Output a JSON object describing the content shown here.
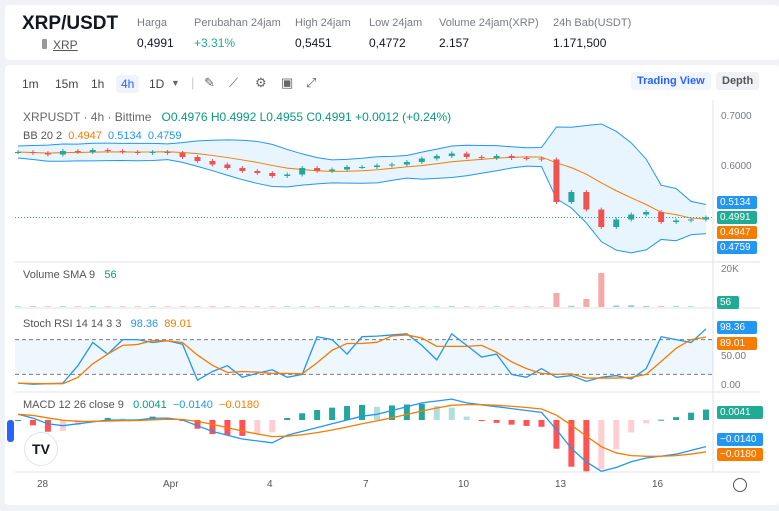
{
  "header": {
    "pair": "XRP/USDT",
    "coin": "XRP",
    "stats": [
      {
        "label": "Harga",
        "value": "0,4991"
      },
      {
        "label": "Perubahan 24jam",
        "value": "+3.31%",
        "color": "#22ab94"
      },
      {
        "label": "High 24jam",
        "value": "0,5451"
      },
      {
        "label": "Low 24jam",
        "value": "0,4772"
      },
      {
        "label": "Volume 24jam(XRP)",
        "value": "2.157"
      },
      {
        "label": "24h Bab(USDT)",
        "value": "1.171,500"
      }
    ]
  },
  "toolbar": {
    "timeframes": [
      "1m",
      "15m",
      "1h",
      "4h",
      "1D"
    ],
    "active": "4h",
    "tools": [
      "pencil-icon",
      "indicator-icon",
      "gear-icon",
      "save-icon",
      "fullscreen-icon"
    ],
    "trading_view": "Trading View",
    "depth": "Depth"
  },
  "legend": {
    "symbol": "XRPUSDT · 4h · Bittime",
    "o": "O0.4976",
    "h": "H0.4992",
    "l": "L0.4955",
    "c": "C0.4991",
    "chg": "+0.0012 (+0.24%)",
    "bb": "BB 20 2",
    "bb_basis": "0.4947",
    "bb_upper": "0.5134",
    "bb_lower": "0.4759",
    "vol": "Volume SMA 9",
    "vol_val": "56",
    "stoch": "Stoch RSI 14 14 3 3",
    "k": "98.36",
    "d": "89.01",
    "macd": "MACD 12 26 close 9",
    "hist": "0.0041",
    "macd_val": "−0.0140",
    "signal": "−0.0180"
  },
  "price_axis": [
    "0.7000",
    "0.6000"
  ],
  "price_tags": {
    "upper": "0.5134",
    "close": "0.4991",
    "basis": "0.4947",
    "lower": "0.4759"
  },
  "vol_axis": "20K",
  "vol_tag": "56",
  "stoch_axis": [
    "50.00",
    "0.00"
  ],
  "time_axis": [
    "28",
    "Apr",
    "4",
    "7",
    "10",
    "13",
    "16"
  ],
  "colors": {
    "up": "#26a69a",
    "down": "#ef5350",
    "blue": "#2196f3",
    "orange": "#f57c00"
  },
  "chart_data": {
    "type": "candlestick",
    "close": [
      0.63,
      0.628,
      0.625,
      0.632,
      0.63,
      0.634,
      0.632,
      0.63,
      0.628,
      0.63,
      0.628,
      0.62,
      0.612,
      0.605,
      0.598,
      0.592,
      0.588,
      0.582,
      0.585,
      0.598,
      0.592,
      0.595,
      0.6,
      0.6,
      0.603,
      0.605,
      0.61,
      0.617,
      0.622,
      0.627,
      0.62,
      0.618,
      0.622,
      0.618,
      0.617,
      0.615,
      0.53,
      0.55,
      0.515,
      0.48,
      0.495,
      0.505,
      0.51,
      0.49,
      0.493,
      0.495,
      0.4991
    ],
    "volume": [
      300,
      400,
      300,
      350,
      300,
      400,
      300,
      300,
      300,
      350,
      300,
      300,
      300,
      350,
      300,
      300,
      300,
      300,
      350,
      300,
      300,
      300,
      300,
      300,
      350,
      300,
      300,
      300,
      300,
      400,
      300,
      300,
      300,
      300,
      300,
      300,
      7000,
      600,
      4000,
      17000,
      800,
      900,
      500,
      400,
      400,
      300,
      56
    ],
    "stoch_k": [
      5,
      3,
      4,
      5,
      35,
      75,
      55,
      80,
      80,
      75,
      78,
      72,
      10,
      25,
      35,
      15,
      22,
      28,
      15,
      20,
      85,
      80,
      55,
      85,
      86,
      88,
      90,
      70,
      45,
      90,
      70,
      50,
      55,
      20,
      15,
      30,
      15,
      18,
      8,
      15,
      18,
      12,
      30,
      85,
      80,
      75,
      98.36
    ],
    "macd": [
      0.003,
      0.001,
      -0.002,
      -0.003,
      -0.002,
      -0.001,
      0,
      0,
      0,
      0.001,
      0.001,
      0,
      -0.003,
      -0.006,
      -0.008,
      -0.01,
      -0.011,
      -0.012,
      -0.008,
      -0.006,
      -0.004,
      -0.002,
      0,
      0.002,
      0.003,
      0.005,
      0.007,
      0.009,
      0.01,
      0.011,
      0.009,
      0.008,
      0.007,
      0.006,
      0.005,
      0.004,
      -0.005,
      -0.015,
      -0.022,
      -0.027,
      -0.025,
      -0.022,
      -0.02,
      -0.019,
      -0.018,
      -0.016,
      -0.014
    ]
  }
}
